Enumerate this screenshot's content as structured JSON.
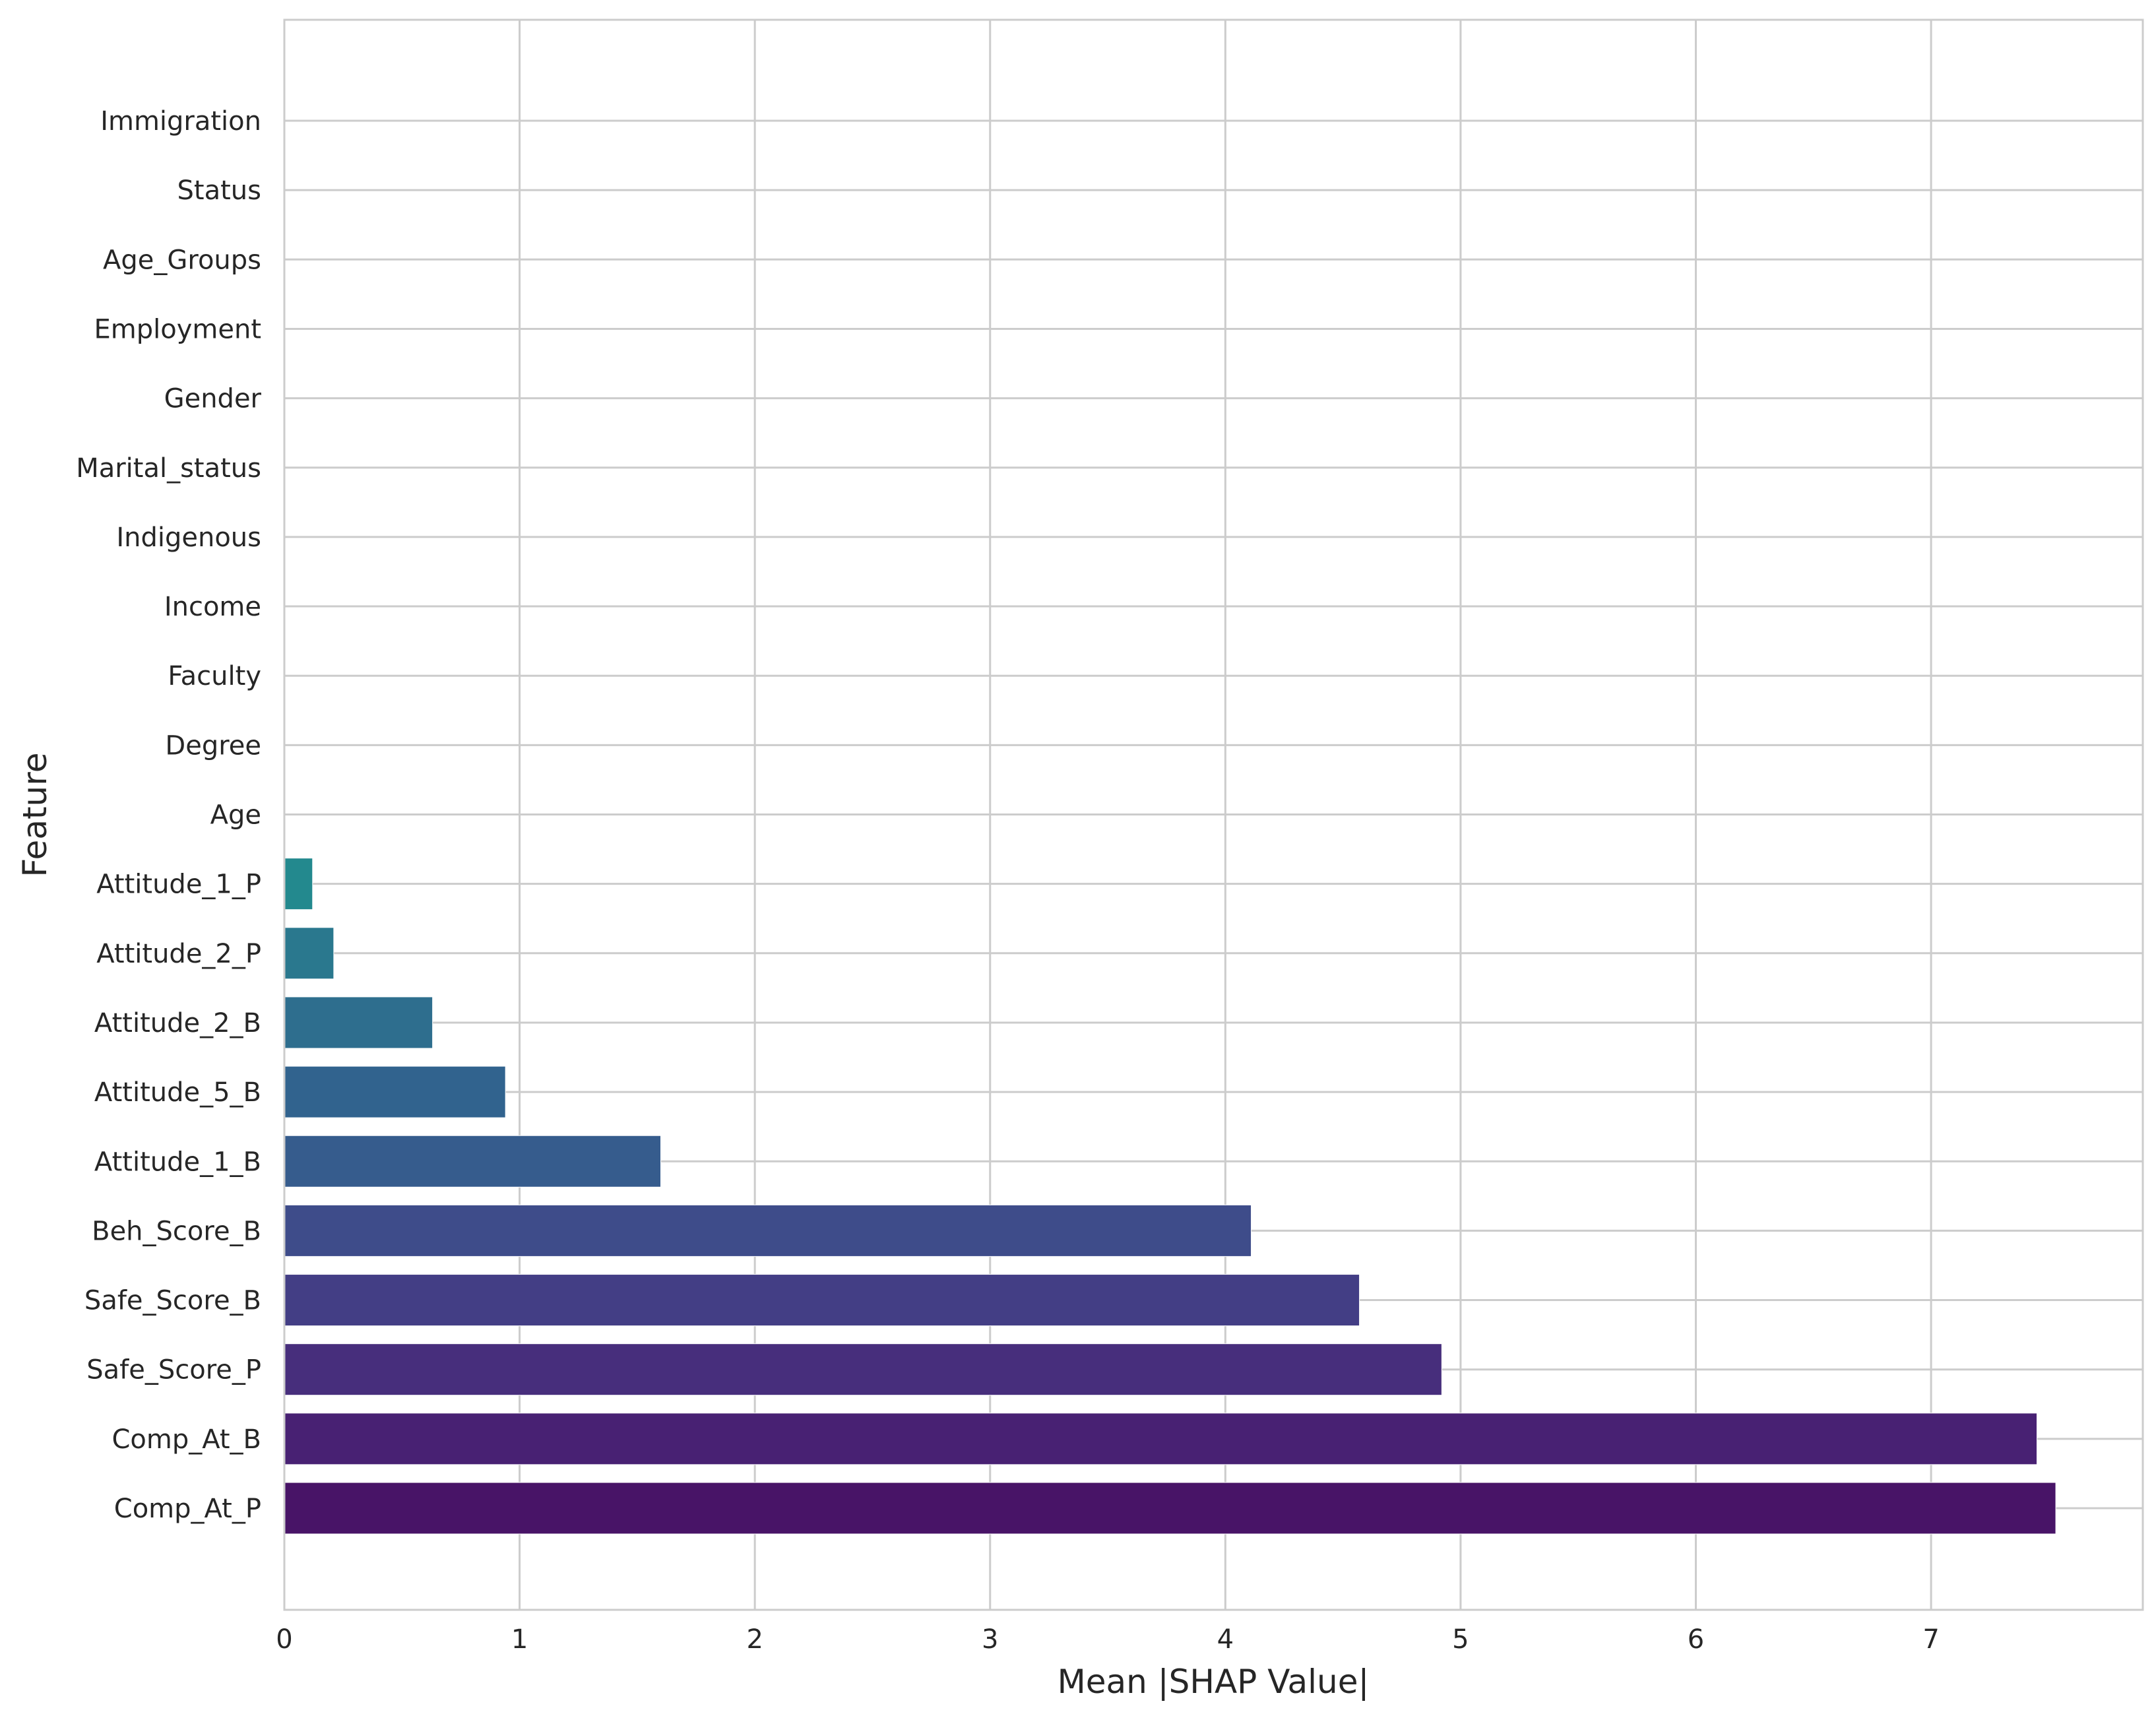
{
  "chart_data": {
    "type": "bar",
    "orientation": "horizontal",
    "xlabel": "Mean |SHAP Value|",
    "ylabel": "Feature",
    "xlim": [
      0,
      7.9
    ],
    "xticks": [
      "0",
      "1",
      "2",
      "3",
      "4",
      "5",
      "6",
      "7"
    ],
    "grid": true,
    "categories": [
      "Immigration",
      "Status",
      "Age_Groups",
      "Employment",
      "Gender",
      "Marital_status",
      "Indigenous",
      "Income",
      "Faculty",
      "Degree",
      "Age",
      "Attitude_1_P",
      "Attitude_2_P",
      "Attitude_2_B",
      "Attitude_5_B",
      "Attitude_1_B",
      "Beh_Score_B",
      "Safe_Score_B",
      "Safe_Score_P",
      "Comp_At_B",
      "Comp_At_P"
    ],
    "values": [
      0,
      0,
      0,
      0,
      0,
      0,
      0,
      0,
      0,
      0,
      0,
      0.12,
      0.21,
      0.63,
      0.94,
      1.6,
      4.11,
      4.57,
      4.92,
      7.45,
      7.53
    ],
    "colors": [
      "#2a788e",
      "#2a788e",
      "#2a788e",
      "#2a788e",
      "#2a788e",
      "#2a788e",
      "#2a788e",
      "#2a788e",
      "#2a788e",
      "#2a788e",
      "#2a788e",
      "#23898e",
      "#2a788e",
      "#2e6e8e",
      "#31638e",
      "#365c8d",
      "#3e4c8a",
      "#433e85",
      "#472e7c",
      "#482173",
      "#481467"
    ]
  }
}
